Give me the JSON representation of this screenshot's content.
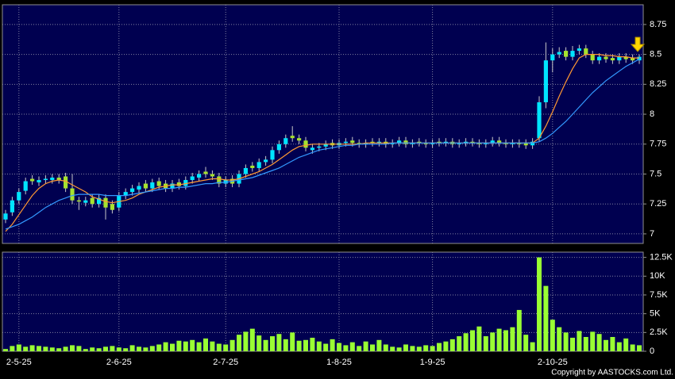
{
  "chart_data": [
    {
      "type": "candlestick",
      "categories": [
        null,
        null,
        "2-5-25",
        null,
        null,
        null,
        null,
        null,
        null,
        null,
        null,
        null,
        null,
        null,
        null,
        null,
        null,
        "2-6-25",
        null,
        null,
        null,
        null,
        null,
        null,
        null,
        null,
        null,
        null,
        null,
        null,
        null,
        null,
        null,
        "2-7-25",
        null,
        null,
        null,
        null,
        null,
        null,
        null,
        null,
        null,
        null,
        null,
        null,
        null,
        null,
        null,
        null,
        "1-8-25",
        null,
        null,
        null,
        null,
        null,
        null,
        null,
        null,
        null,
        null,
        null,
        null,
        null,
        "1-9-25",
        null,
        null,
        null,
        null,
        null,
        null,
        null,
        null,
        null,
        null,
        null,
        null,
        null,
        null,
        null,
        null,
        null,
        "2-10-25",
        null,
        null,
        null,
        null,
        null,
        null,
        null,
        null,
        null,
        null,
        null,
        null,
        null
      ],
      "open": [
        7.12,
        7.18,
        7.28,
        7.36,
        7.46,
        7.43,
        7.45,
        7.45,
        7.47,
        7.48,
        7.38,
        7.28,
        7.26,
        7.3,
        7.25,
        7.3,
        7.25,
        7.22,
        7.32,
        7.35,
        7.37,
        7.42,
        7.38,
        7.44,
        7.42,
        7.38,
        7.43,
        7.4,
        7.45,
        7.47,
        7.52,
        7.5,
        7.48,
        7.42,
        7.46,
        7.42,
        7.5,
        7.57,
        7.55,
        7.6,
        7.62,
        7.7,
        7.75,
        7.82,
        7.8,
        7.78,
        7.7,
        7.72,
        7.73,
        7.76,
        7.74,
        7.76,
        7.78,
        7.76,
        7.75,
        7.77,
        7.76,
        7.77,
        7.75,
        7.76,
        7.78,
        7.75,
        7.77,
        7.76,
        7.75,
        7.77,
        7.76,
        7.77,
        7.75,
        7.76,
        7.77,
        7.76,
        7.75,
        7.76,
        7.78,
        7.76,
        7.75,
        7.76,
        7.76,
        7.74,
        7.8,
        8.1,
        8.45,
        8.5,
        8.53,
        8.48,
        8.53,
        8.55,
        8.5,
        8.45,
        8.48,
        8.47,
        8.45,
        8.48,
        8.47,
        8.45
      ],
      "high": [
        7.2,
        7.31,
        7.38,
        7.47,
        7.49,
        7.48,
        7.49,
        7.5,
        7.5,
        7.51,
        7.5,
        7.31,
        7.31,
        7.33,
        7.33,
        7.33,
        7.28,
        7.35,
        7.38,
        7.41,
        7.43,
        7.45,
        7.46,
        7.47,
        7.45,
        7.45,
        7.46,
        7.48,
        7.51,
        7.53,
        7.56,
        7.53,
        7.51,
        7.48,
        7.49,
        7.53,
        7.58,
        7.6,
        7.63,
        7.65,
        7.73,
        7.78,
        7.83,
        7.9,
        7.83,
        7.81,
        7.75,
        7.76,
        7.78,
        7.79,
        7.79,
        7.8,
        7.81,
        7.79,
        7.79,
        7.8,
        7.8,
        7.8,
        7.79,
        7.81,
        7.81,
        7.79,
        7.8,
        7.79,
        7.79,
        7.8,
        7.8,
        7.8,
        7.79,
        7.8,
        7.8,
        7.79,
        7.79,
        7.81,
        7.81,
        7.79,
        7.79,
        7.79,
        7.79,
        7.8,
        8.15,
        8.6,
        8.55,
        8.56,
        8.56,
        8.57,
        8.58,
        8.58,
        8.53,
        8.51,
        8.51,
        8.5,
        8.51,
        8.51,
        8.5,
        8.5
      ],
      "low": [
        7.09,
        7.15,
        7.25,
        7.33,
        7.41,
        7.4,
        7.42,
        7.42,
        7.42,
        7.35,
        7.25,
        7.2,
        7.23,
        7.22,
        7.22,
        7.12,
        7.17,
        7.19,
        7.29,
        7.32,
        7.34,
        7.35,
        7.35,
        7.37,
        7.35,
        7.35,
        7.37,
        7.37,
        7.42,
        7.44,
        7.47,
        7.45,
        7.39,
        7.39,
        7.39,
        7.39,
        7.47,
        7.52,
        7.52,
        7.57,
        7.59,
        7.67,
        7.72,
        7.77,
        7.75,
        7.69,
        7.67,
        7.69,
        7.7,
        7.71,
        7.71,
        7.73,
        7.73,
        7.72,
        7.72,
        7.73,
        7.73,
        7.72,
        7.72,
        7.73,
        7.72,
        7.72,
        7.73,
        7.72,
        7.72,
        7.73,
        7.73,
        7.72,
        7.72,
        7.73,
        7.73,
        7.72,
        7.72,
        7.73,
        7.73,
        7.72,
        7.72,
        7.72,
        7.71,
        7.71,
        7.77,
        8.05,
        8.35,
        8.47,
        8.45,
        8.45,
        8.5,
        8.47,
        8.42,
        8.42,
        8.43,
        8.42,
        8.42,
        8.43,
        8.42,
        8.42
      ],
      "close": [
        7.17,
        7.28,
        7.35,
        7.44,
        7.44,
        7.45,
        7.46,
        7.47,
        7.45,
        7.38,
        7.28,
        7.27,
        7.28,
        7.25,
        7.3,
        7.22,
        7.2,
        7.32,
        7.35,
        7.38,
        7.4,
        7.38,
        7.43,
        7.4,
        7.38,
        7.42,
        7.4,
        7.45,
        7.48,
        7.5,
        7.5,
        7.48,
        7.42,
        7.45,
        7.42,
        7.5,
        7.55,
        7.55,
        7.6,
        7.62,
        7.7,
        7.75,
        7.8,
        7.8,
        7.78,
        7.72,
        7.72,
        7.73,
        7.75,
        7.74,
        7.76,
        7.77,
        7.76,
        7.75,
        7.76,
        7.76,
        7.77,
        7.75,
        7.76,
        7.78,
        7.75,
        7.76,
        7.76,
        7.75,
        7.76,
        7.76,
        7.77,
        7.75,
        7.76,
        7.77,
        7.76,
        7.75,
        7.76,
        7.78,
        7.76,
        7.75,
        7.76,
        7.75,
        7.74,
        7.77,
        8.1,
        8.45,
        8.5,
        8.52,
        8.48,
        8.53,
        8.55,
        8.5,
        8.45,
        8.48,
        8.46,
        8.45,
        8.48,
        8.46,
        8.45,
        8.48
      ],
      "up_color": "#00e5ff",
      "down_color": "#a6e22e",
      "series": [
        {
          "color": "#ff9933",
          "values": [
            7.02,
            7.08,
            7.16,
            7.24,
            7.32,
            7.38,
            7.42,
            7.44,
            7.45,
            7.44,
            7.41,
            7.38,
            7.35,
            7.31,
            7.29,
            7.27,
            7.26,
            7.27,
            7.28,
            7.3,
            7.33,
            7.35,
            7.37,
            7.39,
            7.4,
            7.41,
            7.41,
            7.42,
            7.43,
            7.44,
            7.45,
            7.46,
            7.46,
            7.45,
            7.45,
            7.46,
            7.48,
            7.5,
            7.52,
            7.55,
            7.58,
            7.62,
            7.66,
            7.7,
            7.73,
            7.74,
            7.75,
            7.75,
            7.75,
            7.75,
            7.75,
            7.75,
            7.75,
            7.75,
            7.76,
            7.76,
            7.76,
            7.76,
            7.76,
            7.76,
            7.76,
            7.76,
            7.76,
            7.76,
            7.76,
            7.76,
            7.76,
            7.76,
            7.76,
            7.76,
            7.76,
            7.76,
            7.76,
            7.76,
            7.76,
            7.76,
            7.76,
            7.76,
            7.76,
            7.76,
            7.8,
            7.9,
            8.02,
            8.15,
            8.27,
            8.38,
            8.47,
            8.5,
            8.5,
            8.5,
            8.49,
            8.49,
            8.48,
            8.48,
            8.47,
            8.47
          ]
        },
        {
          "color": "#3399ff",
          "values": [
            7.04,
            7.06,
            7.08,
            7.11,
            7.14,
            7.18,
            7.22,
            7.25,
            7.28,
            7.3,
            7.32,
            7.33,
            7.33,
            7.33,
            7.33,
            7.32,
            7.32,
            7.32,
            7.32,
            7.33,
            7.34,
            7.35,
            7.36,
            7.37,
            7.38,
            7.38,
            7.39,
            7.39,
            7.4,
            7.41,
            7.42,
            7.42,
            7.43,
            7.43,
            7.44,
            7.45,
            7.46,
            7.47,
            7.49,
            7.51,
            7.53,
            7.55,
            7.58,
            7.61,
            7.64,
            7.66,
            7.68,
            7.7,
            7.71,
            7.72,
            7.73,
            7.74,
            7.74,
            7.75,
            7.75,
            7.75,
            7.75,
            7.75,
            7.76,
            7.76,
            7.76,
            7.76,
            7.76,
            7.76,
            7.76,
            7.76,
            7.76,
            7.76,
            7.76,
            7.76,
            7.76,
            7.76,
            7.76,
            7.76,
            7.76,
            7.76,
            7.76,
            7.76,
            7.76,
            7.76,
            7.77,
            7.8,
            7.84,
            7.89,
            7.94,
            8.0,
            8.06,
            8.12,
            8.18,
            8.23,
            8.28,
            8.32,
            8.36,
            8.4,
            8.43,
            8.46
          ]
        }
      ],
      "ylim": [
        6.92,
        8.915
      ],
      "yticks": [
        7,
        7.25,
        7.5,
        7.75,
        8,
        8.25,
        8.5,
        8.75
      ],
      "grid": true
    },
    {
      "type": "bar",
      "values": [
        300,
        700,
        900,
        600,
        800,
        700,
        600,
        500,
        400,
        600,
        800,
        700,
        300,
        500,
        400,
        600,
        700,
        500,
        400,
        800,
        600,
        500,
        700,
        900,
        1200,
        1000,
        1400,
        1300,
        1500,
        1200,
        1700,
        1300,
        1000,
        900,
        1500,
        2200,
        2600,
        3000,
        2100,
        1500,
        2000,
        2300,
        1600,
        2500,
        1400,
        1500,
        1800,
        1300,
        1000,
        1600,
        1100,
        800,
        1200,
        700,
        1300,
        900,
        1500,
        900,
        600,
        500,
        900,
        700,
        600,
        800,
        700,
        1100,
        1300,
        1600,
        2000,
        2400,
        2800,
        3300,
        2000,
        2500,
        3000,
        2800,
        3200,
        5500,
        2200,
        1200,
        12500,
        8700,
        4200,
        3200,
        2500,
        1800,
        2700,
        1900,
        2600,
        2300,
        1500,
        1900,
        1200,
        1700,
        900,
        800
      ],
      "color": "#99ff33",
      "ylim": [
        0,
        13200
      ],
      "yticks": [
        0,
        {
          "value": 2500,
          "label": "2.5K"
        },
        {
          "value": 5000,
          "label": "5K"
        },
        {
          "value": 7500,
          "label": "7.5K"
        },
        {
          "value": 10000,
          "label": "10K"
        },
        {
          "value": 12500,
          "label": "12.5K"
        }
      ],
      "grid": true
    }
  ],
  "footer": "Copyright by AASTOCKS.com Ltd."
}
